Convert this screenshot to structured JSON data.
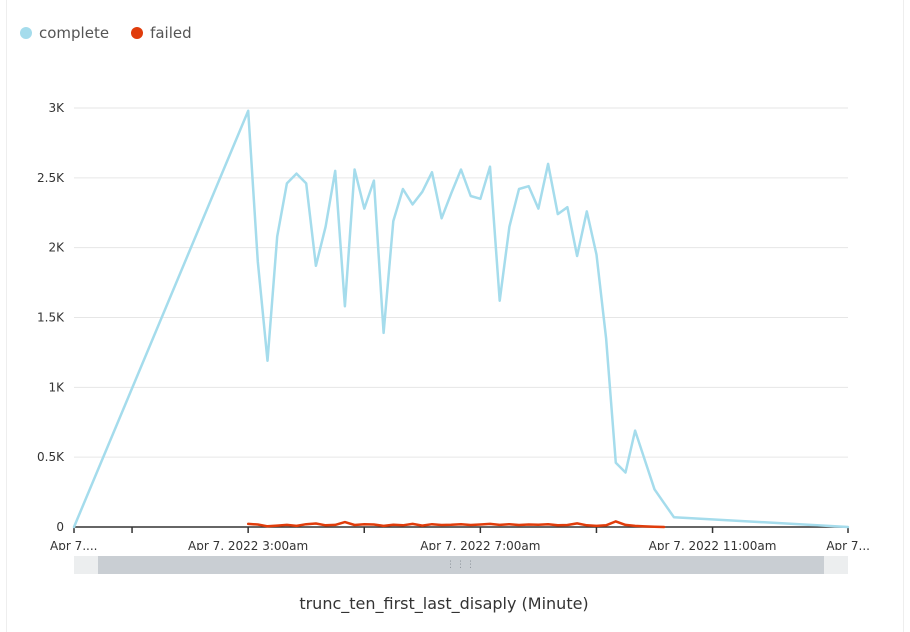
{
  "legend": [
    {
      "label": "complete",
      "color": "#a5dcec"
    },
    {
      "label": "failed",
      "color": "#e03c0b"
    }
  ],
  "chart_data": {
    "type": "line",
    "xlabel": "trunc_ten_first_last_disaply (Minute)",
    "ylabel": "",
    "ylim": [
      0,
      3000
    ],
    "yticks": [
      0,
      500,
      1000,
      1500,
      2000,
      2500,
      3000
    ],
    "ytick_labels": [
      "0",
      "0.5K",
      "1K",
      "1.5K",
      "2K",
      "2.5K",
      "3K"
    ],
    "xlim": [
      "Apr 7, 2022 00:00",
      "Apr 7, 2022 13:20"
    ],
    "xtick_labels": [
      "Apr 7,...",
      "Apr 7, 2022 3:00am",
      "Apr 7, 2022 7:00am",
      "Apr 7, 2022 11:00am",
      "Apr 7..."
    ],
    "xtick_times": [
      "00:00",
      "03:00",
      "07:00",
      "11:00",
      "13:20"
    ],
    "minor_xtick_times": [
      "01:00",
      "05:00",
      "09:00"
    ],
    "grid": true,
    "legend_position": "top-left",
    "series": [
      {
        "name": "complete",
        "color": "#a5dcec",
        "points": [
          [
            "00:00",
            0
          ],
          [
            "03:00",
            2980
          ],
          [
            "03:10",
            1900
          ],
          [
            "03:20",
            1190
          ],
          [
            "03:30",
            2080
          ],
          [
            "03:40",
            2460
          ],
          [
            "03:50",
            2530
          ],
          [
            "04:00",
            2460
          ],
          [
            "04:10",
            1870
          ],
          [
            "04:20",
            2150
          ],
          [
            "04:30",
            2550
          ],
          [
            "04:40",
            1580
          ],
          [
            "04:50",
            2560
          ],
          [
            "05:00",
            2280
          ],
          [
            "05:10",
            2480
          ],
          [
            "05:20",
            1390
          ],
          [
            "05:30",
            2190
          ],
          [
            "05:40",
            2420
          ],
          [
            "05:50",
            2310
          ],
          [
            "06:00",
            2400
          ],
          [
            "06:10",
            2540
          ],
          [
            "06:20",
            2210
          ],
          [
            "06:30",
            2390
          ],
          [
            "06:40",
            2560
          ],
          [
            "06:50",
            2370
          ],
          [
            "07:00",
            2350
          ],
          [
            "07:10",
            2580
          ],
          [
            "07:20",
            1620
          ],
          [
            "07:30",
            2150
          ],
          [
            "07:40",
            2420
          ],
          [
            "07:50",
            2440
          ],
          [
            "08:00",
            2280
          ],
          [
            "08:10",
            2600
          ],
          [
            "08:20",
            2240
          ],
          [
            "08:30",
            2290
          ],
          [
            "08:40",
            1940
          ],
          [
            "08:50",
            2260
          ],
          [
            "09:00",
            1950
          ],
          [
            "09:10",
            1350
          ],
          [
            "09:20",
            460
          ],
          [
            "09:30",
            390
          ],
          [
            "09:40",
            690
          ],
          [
            "09:50",
            480
          ],
          [
            "10:00",
            270
          ],
          [
            "10:10",
            170
          ],
          [
            "10:20",
            70
          ],
          [
            "13:20",
            0
          ]
        ]
      },
      {
        "name": "failed",
        "color": "#e03c0b",
        "points": [
          [
            "03:00",
            22
          ],
          [
            "03:10",
            18
          ],
          [
            "03:20",
            5
          ],
          [
            "03:30",
            10
          ],
          [
            "03:40",
            15
          ],
          [
            "03:50",
            8
          ],
          [
            "04:00",
            20
          ],
          [
            "04:10",
            25
          ],
          [
            "04:20",
            12
          ],
          [
            "04:30",
            15
          ],
          [
            "04:40",
            35
          ],
          [
            "04:50",
            14
          ],
          [
            "05:00",
            20
          ],
          [
            "05:10",
            18
          ],
          [
            "05:20",
            8
          ],
          [
            "05:30",
            16
          ],
          [
            "05:40",
            12
          ],
          [
            "05:50",
            22
          ],
          [
            "06:00",
            10
          ],
          [
            "06:10",
            20
          ],
          [
            "06:20",
            14
          ],
          [
            "06:30",
            16
          ],
          [
            "06:40",
            20
          ],
          [
            "06:50",
            14
          ],
          [
            "07:00",
            18
          ],
          [
            "07:10",
            22
          ],
          [
            "07:20",
            15
          ],
          [
            "07:30",
            20
          ],
          [
            "07:40",
            14
          ],
          [
            "07:50",
            18
          ],
          [
            "08:00",
            16
          ],
          [
            "08:10",
            20
          ],
          [
            "08:20",
            12
          ],
          [
            "08:30",
            14
          ],
          [
            "08:40",
            26
          ],
          [
            "08:50",
            12
          ],
          [
            "09:00",
            8
          ],
          [
            "09:10",
            12
          ],
          [
            "09:20",
            40
          ],
          [
            "09:30",
            15
          ],
          [
            "09:40",
            8
          ],
          [
            "09:50",
            4
          ],
          [
            "10:00",
            2
          ],
          [
            "10:10",
            0
          ]
        ]
      }
    ]
  }
}
